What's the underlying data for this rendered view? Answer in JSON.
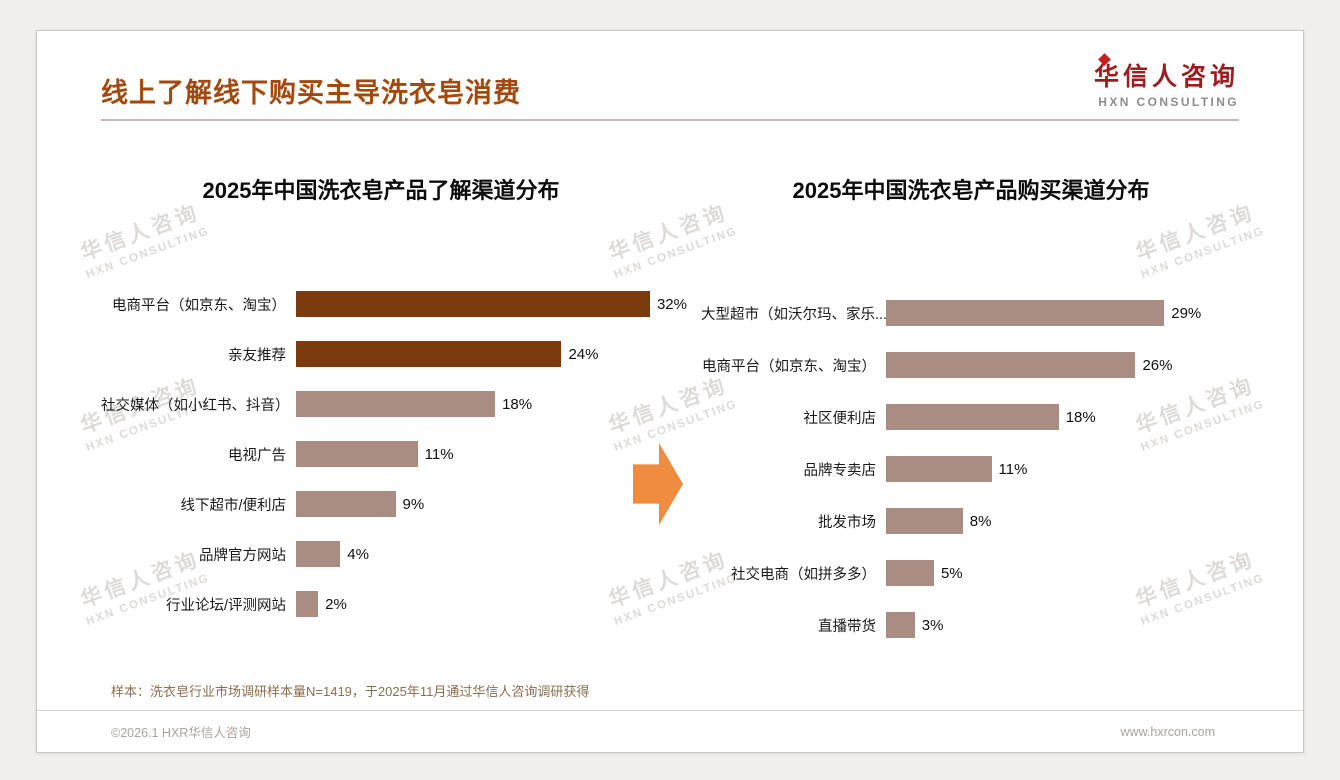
{
  "page": {
    "title": "线上了解线下购买主导洗衣皂消费",
    "logo": {
      "cn": "华信人咨询",
      "en": "HXN CONSULTING"
    },
    "watermark": {
      "cn": "华信人咨询",
      "en": "HXN CONSULTING"
    },
    "footnote": "样本：洗衣皂行业市场调研样本量N=1419，于2025年11月通过华信人咨询调研获得",
    "footer": {
      "left": "©2026.1 HXR华信人咨询",
      "right": "www.hxrcon.com"
    },
    "colors": {
      "title": "#A3490E",
      "bar_dark": "#7B3B0F",
      "bar_light": "#A98C82",
      "arrow": "#EF8C3F",
      "logo_red": "#9E1C1F"
    }
  },
  "chart_data": [
    {
      "type": "bar",
      "orientation": "horizontal",
      "title": "2025年中国洗衣皂产品了解渠道分布",
      "categories": [
        "电商平台（如京东、淘宝）",
        "亲友推荐",
        "社交媒体（如小红书、抖音）",
        "电视广告",
        "线下超市/便利店",
        "品牌官方网站",
        "行业论坛/评测网站"
      ],
      "values": [
        32,
        24,
        18,
        11,
        9,
        4,
        2
      ],
      "value_labels": [
        "32%",
        "24%",
        "18%",
        "11%",
        "9%",
        "4%",
        "2%"
      ],
      "bar_colors": [
        "#7B3B0F",
        "#7B3B0F",
        "#A98C82",
        "#A98C82",
        "#A98C82",
        "#A98C82",
        "#A98C82"
      ],
      "xlim": [
        0,
        33
      ],
      "grid": false,
      "value_label_position": "outside-right"
    },
    {
      "type": "bar",
      "orientation": "horizontal",
      "title": "2025年中国洗衣皂产品购买渠道分布",
      "categories": [
        "大型超市（如沃尔玛、家乐...",
        "电商平台（如京东、淘宝）",
        "社区便利店",
        "品牌专卖店",
        "批发市场",
        "社交电商（如拼多多）",
        "直播带货"
      ],
      "values": [
        29,
        26,
        18,
        11,
        8,
        5,
        3
      ],
      "value_labels": [
        "29%",
        "26%",
        "18%",
        "11%",
        "8%",
        "5%",
        "3%"
      ],
      "bar_color": "#A98C82",
      "xlim": [
        0,
        37
      ],
      "grid": false,
      "value_label_position": "outside-right"
    }
  ]
}
